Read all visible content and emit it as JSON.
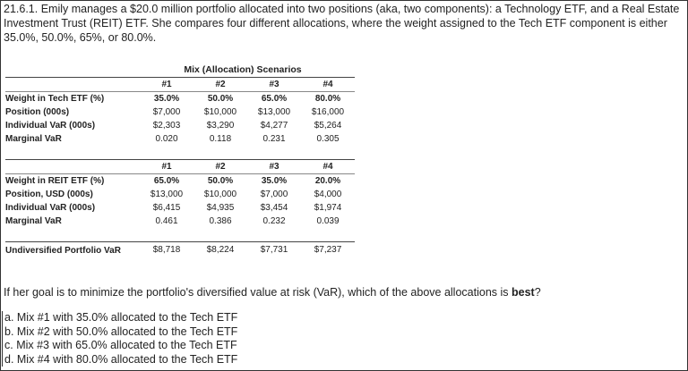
{
  "intro_text": "21.6.1. Emily manages a $20.0 million portfolio allocated into two positions (aka, two components): a Technology ETF, and a Real Estate Investment Trust (REIT) ETF. She compares four different allocations, where the weight assigned to the Tech ETF component is either 35.0%, 50.0%, 65%, or 80.0%.",
  "table": {
    "title": "Mix (Allocation) Scenarios",
    "mix_headers": [
      "#1",
      "#2",
      "#3",
      "#4"
    ],
    "tech": {
      "rows": [
        {
          "label": "Weight in Tech ETF (%)",
          "values": [
            "35.0%",
            "50.0%",
            "65.0%",
            "80.0%"
          ]
        },
        {
          "label": "Position (000s)",
          "values": [
            "$7,000",
            "$10,000",
            "$13,000",
            "$16,000"
          ]
        },
        {
          "label": "Individual VaR (000s)",
          "values": [
            "$2,303",
            "$3,290",
            "$4,277",
            "$5,264"
          ]
        },
        {
          "label": "Marginal VaR",
          "values": [
            "0.020",
            "0.118",
            "0.231",
            "0.305"
          ]
        }
      ]
    },
    "reit": {
      "rows": [
        {
          "label": "Weight in REIT ETF (%)",
          "values": [
            "65.0%",
            "50.0%",
            "35.0%",
            "20.0%"
          ]
        },
        {
          "label": "Position, USD (000s)",
          "values": [
            "$13,000",
            "$10,000",
            "$7,000",
            "$4,000"
          ]
        },
        {
          "label": "Individual VaR (000s)",
          "values": [
            "$6,415",
            "$4,935",
            "$3,454",
            "$1,974"
          ]
        },
        {
          "label": "Marginal VaR",
          "values": [
            "0.461",
            "0.386",
            "0.232",
            "0.039"
          ]
        }
      ]
    },
    "undiversified": {
      "label": "Undiversified Portfolio VaR",
      "values": [
        "$8,718",
        "$8,224",
        "$7,731",
        "$7,237"
      ]
    }
  },
  "question": {
    "before": "If her goal is to minimize the portfolio's diversified value at risk (VaR), which of the above allocations is ",
    "emphasis": "best",
    "after": "?"
  },
  "choices": [
    "a. Mix #1 with 35.0% allocated to the Tech ETF",
    "b. Mix #2 with 50.0% allocated to the Tech ETF",
    "c. Mix #3 with 65.0% allocated to the Tech ETF",
    "d. Mix #4 with 80.0% allocated to the Tech ETF"
  ]
}
